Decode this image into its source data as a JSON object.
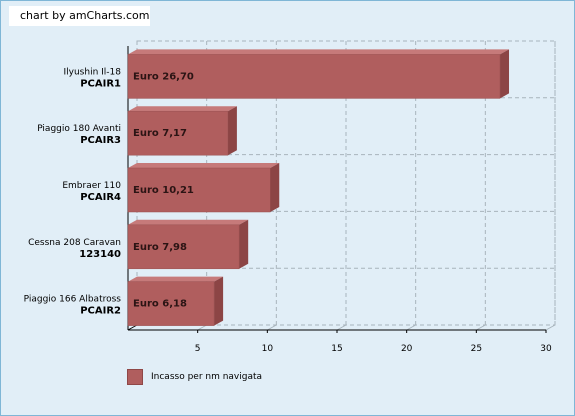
{
  "credit": "chart by amCharts.com",
  "colors": {
    "bar": "#b05e5e",
    "bar_top": "#c67a7a",
    "bar_side": "#8c4545",
    "background": "#e1eef7",
    "grid": "#a8b4bc"
  },
  "chart_data": {
    "type": "bar",
    "orientation": "horizontal",
    "categories": [
      {
        "line1": "Ilyushin Il-18",
        "line2": "PCAIR1"
      },
      {
        "line1": "Piaggio 180 Avanti",
        "line2": "PCAIR3"
      },
      {
        "line1": "Embraer 110",
        "line2": "PCAIR4"
      },
      {
        "line1": "Cessna 208 Caravan",
        "line2": "123140"
      },
      {
        "line1": "Piaggio 166 Albatross",
        "line2": "PCAIR2"
      }
    ],
    "series": [
      {
        "name": "Incasso per nm navigata",
        "values": [
          26.7,
          7.17,
          10.21,
          7.98,
          6.18
        ],
        "labels": [
          "Euro 26,70",
          "Euro 7,17",
          "Euro 10,21",
          "Euro 7,98",
          "Euro 6,18"
        ]
      }
    ],
    "xlim": [
      0,
      30
    ],
    "xticks": [
      5,
      10,
      15,
      20,
      25,
      30
    ],
    "grid": true,
    "legend_position": "bottom-left"
  }
}
